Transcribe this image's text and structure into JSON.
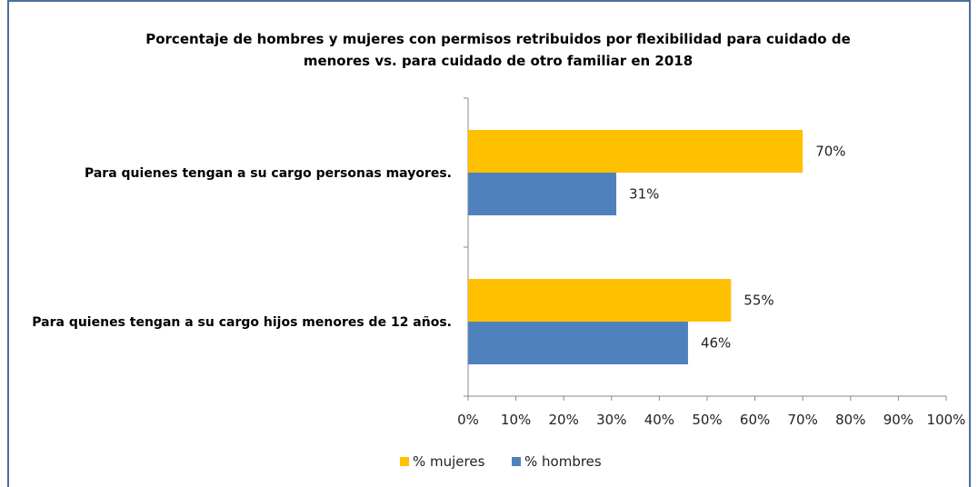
{
  "chart_data": {
    "type": "bar",
    "orientation": "horizontal",
    "title": [
      "Porcentaje de hombres y mujeres con permisos retribuidos por flexibilidad para cuidado de",
      "menores vs. para cuidado de otro familiar en 2018"
    ],
    "categories": [
      "Para quienes tengan a su cargo personas mayores.",
      "Para quienes tengan a su cargo hijos menores de 12 años."
    ],
    "series": [
      {
        "name": "% mujeres",
        "color": "#FFC000",
        "values": [
          70,
          55
        ],
        "labels": [
          "70%",
          "55%"
        ]
      },
      {
        "name": "% hombres",
        "color": "#4F81BD",
        "values": [
          31,
          46
        ],
        "labels": [
          "31%",
          "46%"
        ]
      }
    ],
    "xlim": [
      0,
      100
    ],
    "xticks": [
      "0%",
      "10%",
      "20%",
      "30%",
      "40%",
      "50%",
      "60%",
      "70%",
      "80%",
      "90%",
      "100%"
    ],
    "grid": false,
    "legend_position": "bottom"
  }
}
